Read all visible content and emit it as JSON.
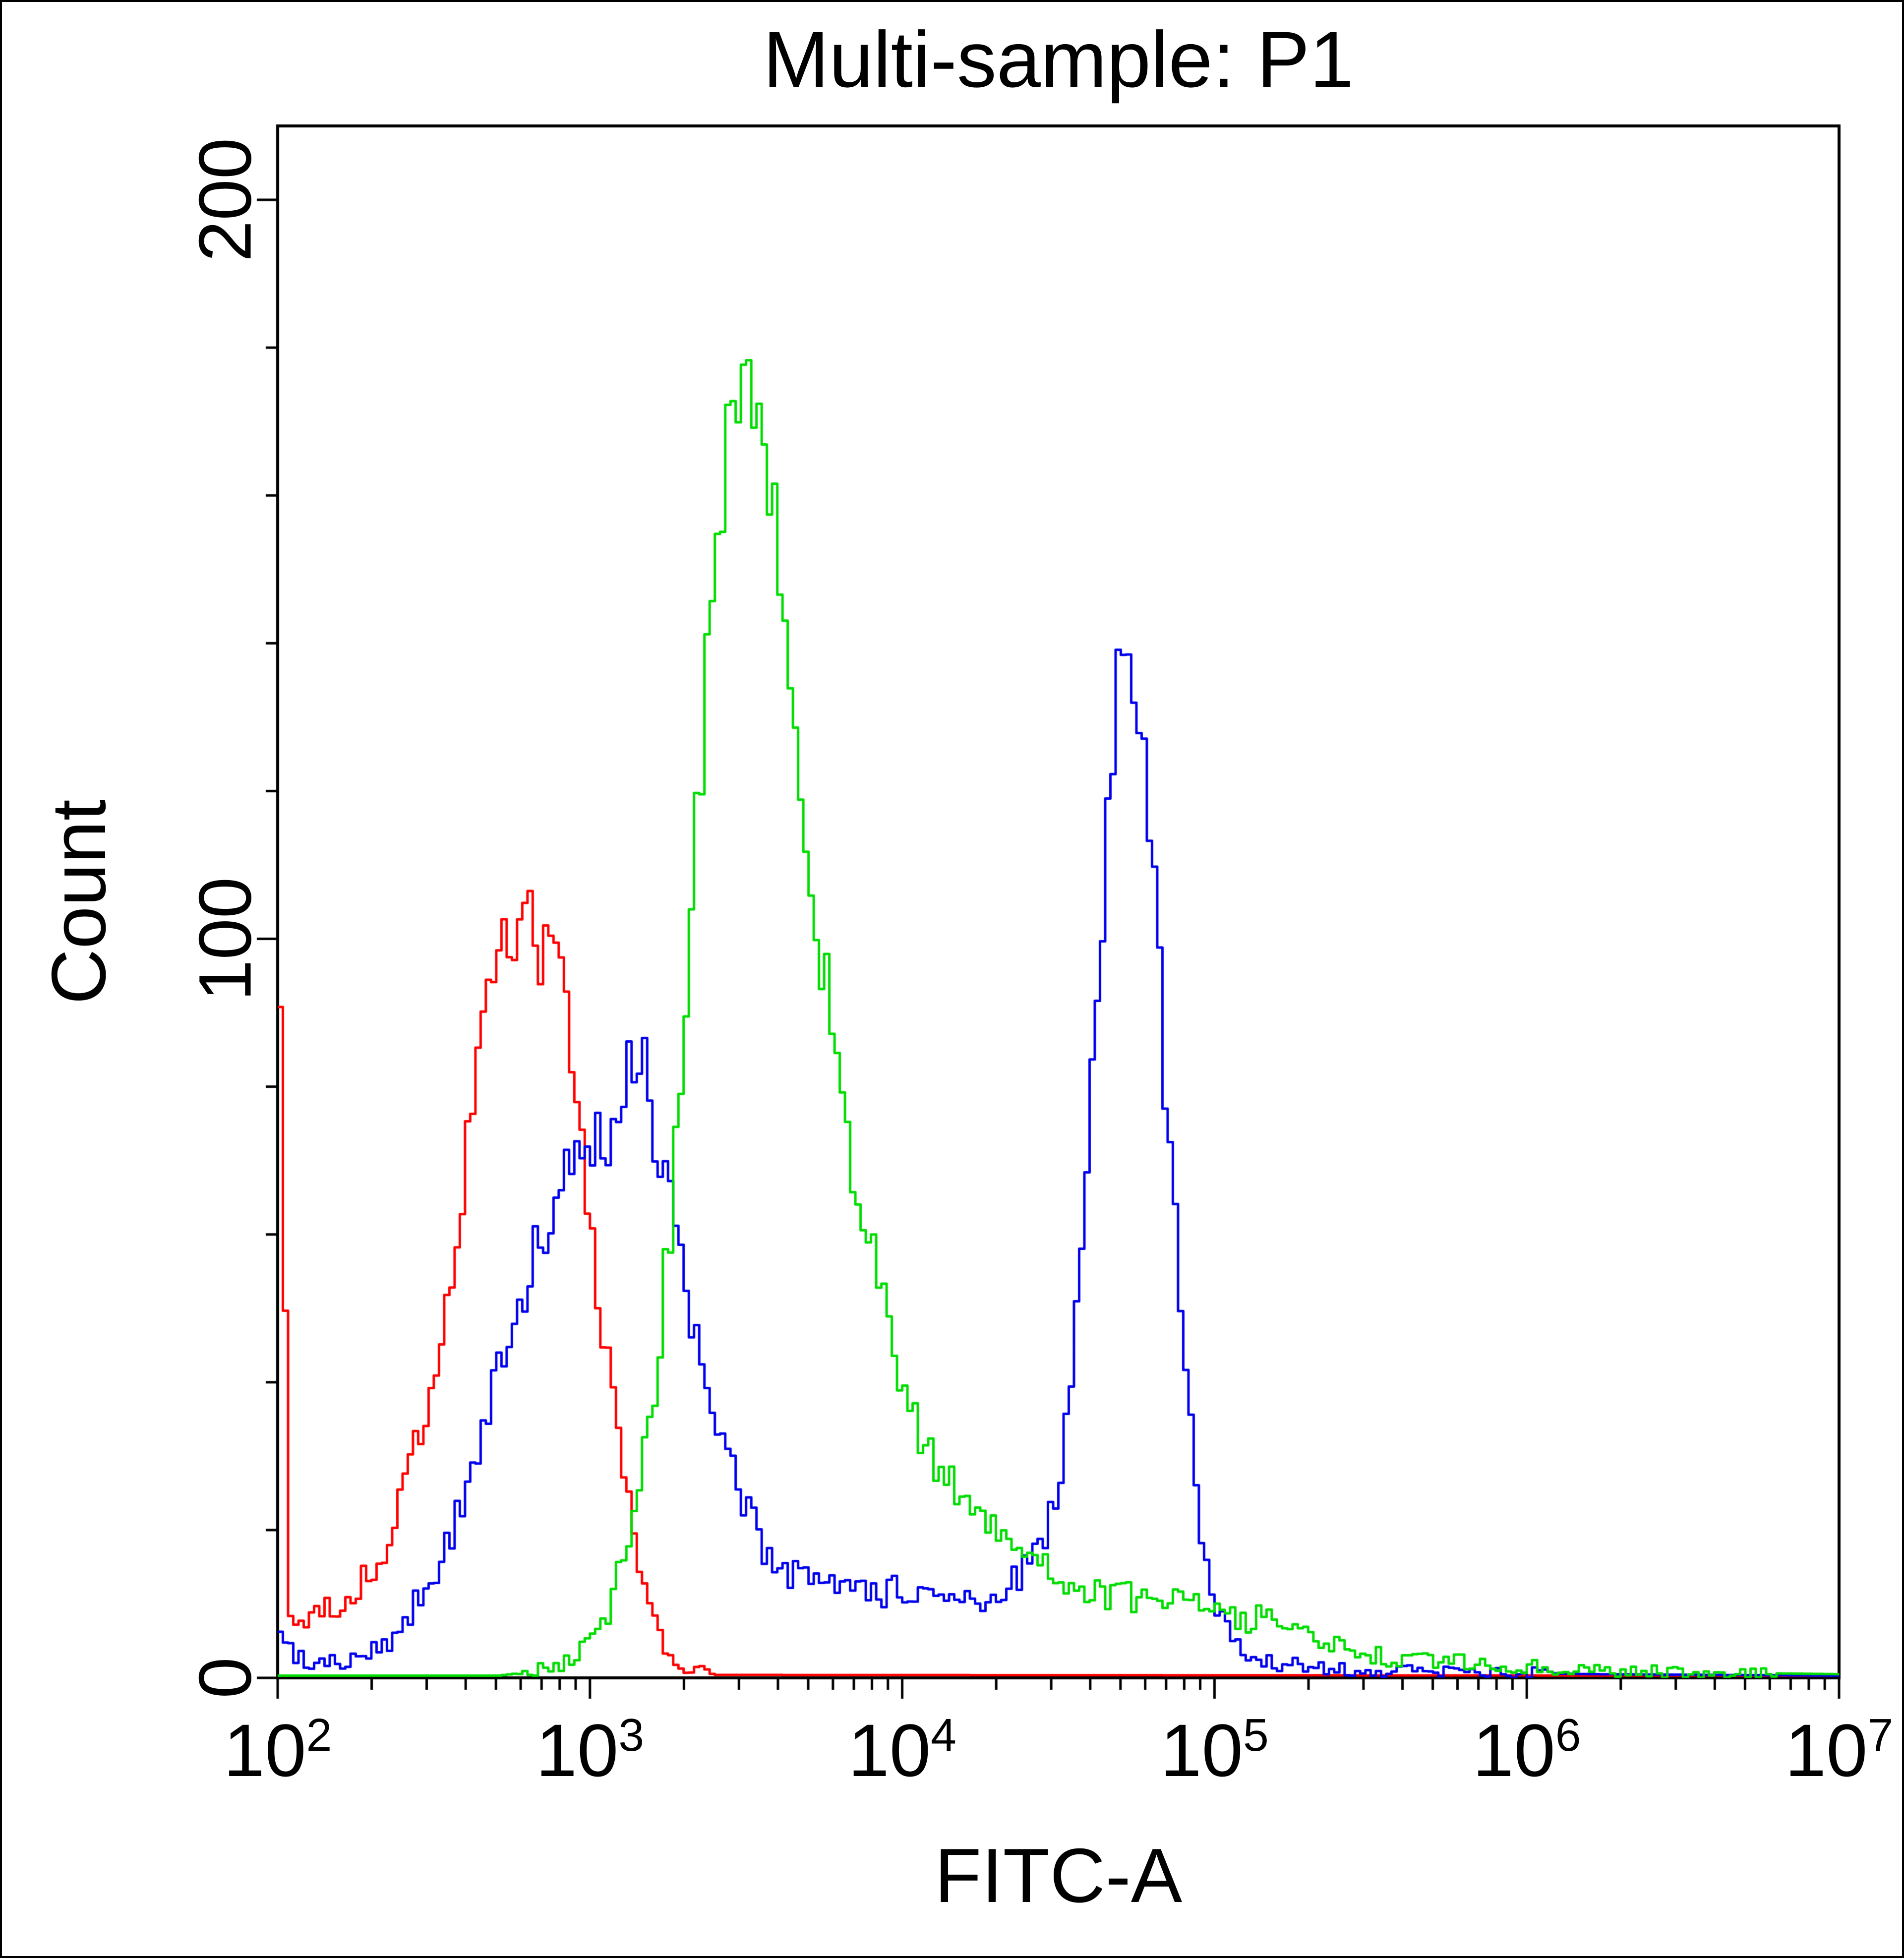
{
  "chart_data": {
    "type": "line",
    "chart_kind": "flow-cytometry-histogram-overlay",
    "title": "Multi-sample: P1",
    "xlabel": "FITC-A",
    "ylabel": "Count",
    "background": "#ffffff",
    "frame_color": "#000000",
    "axis_text_color": "#000000",
    "x_scale": "log10",
    "x_tick_base": 10,
    "xlim_exponents": [
      2,
      7
    ],
    "x_major_tick_exponents": [
      2,
      3,
      4,
      5,
      6,
      7
    ],
    "ylim": [
      0,
      200
    ],
    "y_major_ticks": [
      0,
      100,
      200
    ],
    "y_minor_tick_step": 20,
    "grid": "off",
    "legend": "none",
    "noise": {
      "seed": 20,
      "amp": 0.55,
      "bins": 300
    },
    "series": [
      {
        "name": "red-histogram",
        "color": "#ff0000",
        "peak_x": 650,
        "peak_count": 105,
        "anchors": [
          [
            2.0,
            88
          ],
          [
            2.012,
            88
          ],
          [
            2.022,
            8
          ],
          [
            2.1,
            8
          ],
          [
            2.15,
            9
          ],
          [
            2.2,
            10
          ],
          [
            2.25,
            12
          ],
          [
            2.3,
            15
          ],
          [
            2.35,
            19
          ],
          [
            2.4,
            25
          ],
          [
            2.45,
            33
          ],
          [
            2.5,
            43
          ],
          [
            2.55,
            56
          ],
          [
            2.6,
            72
          ],
          [
            2.65,
            87
          ],
          [
            2.7,
            97
          ],
          [
            2.75,
            103
          ],
          [
            2.8,
            106
          ],
          [
            2.83,
            99
          ],
          [
            2.86,
            103
          ],
          [
            2.9,
            93
          ],
          [
            2.95,
            77
          ],
          [
            3.0,
            59
          ],
          [
            3.05,
            43
          ],
          [
            3.1,
            27
          ],
          [
            3.15,
            14
          ],
          [
            3.2,
            7
          ],
          [
            3.25,
            3
          ],
          [
            3.3,
            1.2
          ],
          [
            3.4,
            0.4
          ],
          [
            7.0,
            0.3
          ]
        ]
      },
      {
        "name": "blue-histogram",
        "color": "#0000ee",
        "peak_x": 50000,
        "peak_count": 140,
        "anchors": [
          [
            2.0,
            7
          ],
          [
            2.04,
            3
          ],
          [
            2.1,
            2
          ],
          [
            2.2,
            2
          ],
          [
            2.3,
            3.5
          ],
          [
            2.35,
            5
          ],
          [
            2.4,
            8
          ],
          [
            2.45,
            11
          ],
          [
            2.5,
            15
          ],
          [
            2.55,
            20
          ],
          [
            2.6,
            27
          ],
          [
            2.65,
            34
          ],
          [
            2.7,
            41
          ],
          [
            2.75,
            49
          ],
          [
            2.8,
            56
          ],
          [
            2.85,
            61
          ],
          [
            2.9,
            66
          ],
          [
            2.95,
            69
          ],
          [
            3.0,
            72
          ],
          [
            3.05,
            74
          ],
          [
            3.1,
            78
          ],
          [
            3.13,
            85
          ],
          [
            3.16,
            86
          ],
          [
            3.2,
            74
          ],
          [
            3.25,
            63
          ],
          [
            3.3,
            52
          ],
          [
            3.35,
            42
          ],
          [
            3.4,
            33
          ],
          [
            3.45,
            27
          ],
          [
            3.5,
            22
          ],
          [
            3.55,
            18
          ],
          [
            3.6,
            15
          ],
          [
            3.7,
            13
          ],
          [
            3.8,
            12
          ],
          [
            3.9,
            11
          ],
          [
            4.0,
            12
          ],
          [
            4.1,
            10
          ],
          [
            4.2,
            10
          ],
          [
            4.3,
            12
          ],
          [
            4.35,
            13
          ],
          [
            4.4,
            15
          ],
          [
            4.45,
            19
          ],
          [
            4.5,
            28
          ],
          [
            4.55,
            48
          ],
          [
            4.6,
            82
          ],
          [
            4.65,
            117
          ],
          [
            4.68,
            135
          ],
          [
            4.72,
            140
          ],
          [
            4.75,
            131
          ],
          [
            4.8,
            106
          ],
          [
            4.85,
            70
          ],
          [
            4.9,
            40
          ],
          [
            4.95,
            19
          ],
          [
            5.0,
            9
          ],
          [
            5.05,
            5
          ],
          [
            5.1,
            3
          ],
          [
            5.2,
            2
          ],
          [
            5.3,
            1.5
          ],
          [
            5.5,
            1
          ],
          [
            5.8,
            0.8
          ],
          [
            6.2,
            0.5
          ],
          [
            6.6,
            0.4
          ],
          [
            7.0,
            0.3
          ]
        ]
      },
      {
        "name": "green-histogram",
        "color": "#00dd00",
        "peak_x": 3000,
        "peak_count": 180,
        "anchors": [
          [
            2.0,
            0.3
          ],
          [
            2.7,
            0.3
          ],
          [
            2.8,
            0.8
          ],
          [
            2.9,
            2
          ],
          [
            3.0,
            5
          ],
          [
            3.05,
            9
          ],
          [
            3.1,
            16
          ],
          [
            3.15,
            26
          ],
          [
            3.2,
            40
          ],
          [
            3.25,
            62
          ],
          [
            3.3,
            92
          ],
          [
            3.35,
            125
          ],
          [
            3.4,
            155
          ],
          [
            3.45,
            172
          ],
          [
            3.5,
            178
          ],
          [
            3.55,
            168
          ],
          [
            3.6,
            148
          ],
          [
            3.65,
            128
          ],
          [
            3.7,
            108
          ],
          [
            3.75,
            94
          ],
          [
            3.8,
            78
          ],
          [
            3.85,
            66
          ],
          [
            3.9,
            56
          ],
          [
            3.95,
            46
          ],
          [
            4.0,
            38
          ],
          [
            4.1,
            28
          ],
          [
            4.2,
            24
          ],
          [
            4.3,
            20
          ],
          [
            4.4,
            17
          ],
          [
            4.5,
            14
          ],
          [
            4.6,
            12
          ],
          [
            4.7,
            11
          ],
          [
            4.8,
            10
          ],
          [
            4.9,
            10
          ],
          [
            5.0,
            9
          ],
          [
            5.1,
            8
          ],
          [
            5.15,
            9
          ],
          [
            5.2,
            7
          ],
          [
            5.3,
            5
          ],
          [
            5.4,
            4
          ],
          [
            5.5,
            3
          ],
          [
            5.6,
            2.5
          ],
          [
            5.8,
            2
          ],
          [
            6.0,
            1.5
          ],
          [
            6.2,
            1
          ],
          [
            6.5,
            0.8
          ],
          [
            6.8,
            0.6
          ],
          [
            7.0,
            0.5
          ]
        ]
      }
    ]
  }
}
